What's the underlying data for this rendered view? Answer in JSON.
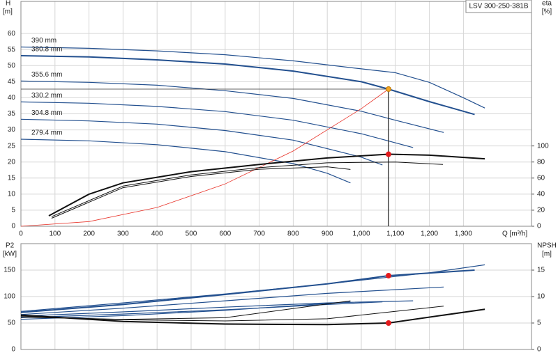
{
  "chart_data": [
    {
      "type": "line",
      "annotation": "LSV 300-250-381B",
      "xlabel": "Q [m³/h]",
      "ylabel": "H",
      "yunit": "[m]",
      "y2label": "eta",
      "y2unit": "[%]",
      "xlim": [
        0,
        1500
      ],
      "ylim": [
        0,
        70
      ],
      "y2lim": [
        0,
        280
      ],
      "grid": true,
      "show_xtick_labels": true,
      "xticks": [
        0,
        100,
        200,
        300,
        400,
        500,
        600,
        700,
        800,
        900,
        {
          "value": 1000,
          "label": "1,000"
        },
        {
          "value": 1100,
          "label": "1,100"
        },
        {
          "value": 1200,
          "label": "1,200"
        },
        {
          "value": 1300,
          "label": "1,300"
        }
      ],
      "yticks": [
        0,
        5,
        10,
        15,
        20,
        25,
        30,
        35,
        40,
        45,
        50,
        55,
        60
      ],
      "y2ticks": [
        0,
        20,
        40,
        60,
        80,
        100
      ],
      "series": [
        {
          "name": "390 mm",
          "color": "#23508f",
          "width": 1.2,
          "x": [
            0,
            200,
            400,
            600,
            800,
            1000,
            1100,
            1200,
            1300,
            1363
          ],
          "values": [
            55.8,
            55.4,
            54.6,
            53.4,
            51.5,
            49,
            47.8,
            44.8,
            40,
            36.8
          ]
        },
        {
          "name": "380.8 mm",
          "color": "#23508f",
          "width": 2,
          "x": [
            0,
            200,
            400,
            600,
            800,
            1000,
            1080,
            1200,
            1333
          ],
          "values": [
            53.1,
            52.7,
            51.8,
            50.5,
            48.3,
            45,
            42.7,
            38.8,
            34.8
          ]
        },
        {
          "name": "355.6 mm",
          "color": "#23508f",
          "width": 1.2,
          "x": [
            0,
            200,
            400,
            600,
            800,
            1000,
            1100,
            1242
          ],
          "values": [
            45.2,
            44.8,
            43.9,
            42.2,
            39.8,
            35.8,
            33,
            29.2
          ]
        },
        {
          "name": "330.2 mm",
          "color": "#23508f",
          "width": 1.2,
          "x": [
            0,
            200,
            400,
            600,
            800,
            1000,
            1152
          ],
          "values": [
            38.7,
            38.3,
            37.3,
            35.7,
            33,
            28.8,
            24.5
          ]
        },
        {
          "name": "304.8 mm",
          "color": "#23508f",
          "width": 1.2,
          "x": [
            0,
            200,
            400,
            600,
            800,
            1000,
            1062
          ],
          "values": [
            33.3,
            32.8,
            31.8,
            29.8,
            26.8,
            21.5,
            19.1
          ]
        },
        {
          "name": "279.4 mm",
          "color": "#23508f",
          "width": 1.2,
          "x": [
            0,
            200,
            400,
            600,
            800,
            900,
            968
          ],
          "values": [
            27.1,
            26.6,
            25.4,
            23.2,
            19.5,
            16.5,
            13.5
          ]
        },
        {
          "color": "#e8352b",
          "width": 0.8,
          "x": [
            0,
            200,
            400,
            600,
            800,
            1000,
            1080
          ],
          "values": [
            0,
            1.46,
            5.86,
            13.18,
            23.43,
            36.61,
            42.7
          ]
        },
        {
          "color": "#111111",
          "width": 2,
          "axis": "y2",
          "x": [
            82,
            200,
            300,
            500,
            700,
            900,
            1080,
            1200,
            1363
          ],
          "values": [
            13,
            40,
            54,
            68,
            77,
            85,
            89.7,
            88.5,
            84
          ]
        },
        {
          "color": "#111111",
          "width": 1,
          "axis": "y2",
          "x": [
            90,
            300,
            500,
            700,
            900,
            1100,
            1240
          ],
          "values": [
            12,
            50,
            64,
            73,
            79,
            80,
            77
          ]
        },
        {
          "color": "#111111",
          "width": 1,
          "axis": "y2",
          "x": [
            90,
            300,
            500,
            700,
            900,
            968
          ],
          "values": [
            10,
            48,
            62,
            71,
            74,
            70.7
          ]
        }
      ],
      "markers": [
        {
          "x": 1080,
          "y": 42.7,
          "color": "#f5a623",
          "guide": true
        },
        {
          "x": 1080,
          "y": 89.7,
          "axis": "y2",
          "color": "#e31a1c"
        }
      ]
    },
    {
      "type": "line",
      "ylabel": "P2",
      "yunit": "[kW]",
      "y2label": "NPSH",
      "y2unit": "[m]",
      "xlim": [
        0,
        1500
      ],
      "ylim": [
        0,
        200
      ],
      "y2lim": [
        0,
        20
      ],
      "grid": true,
      "show_xtick_labels": false,
      "xticks": [
        0,
        100,
        200,
        300,
        400,
        500,
        600,
        700,
        800,
        900,
        1000,
        1100,
        1200,
        1300
      ],
      "yticks": [
        0,
        50,
        100,
        150
      ],
      "y2ticks": [
        0,
        5,
        10,
        15
      ],
      "series": [
        {
          "color": "#23508f",
          "width": 1.2,
          "x": [
            0,
            300,
            600,
            900,
            1200,
            1363
          ],
          "values": [
            72,
            88,
            105,
            124,
            145,
            160
          ]
        },
        {
          "color": "#23508f",
          "width": 2,
          "x": [
            0,
            300,
            600,
            900,
            1080,
            1333
          ],
          "values": [
            70,
            85,
            104,
            124,
            139.5,
            150
          ]
        },
        {
          "color": "#23508f",
          "width": 1.2,
          "x": [
            0,
            300,
            600,
            900,
            1242
          ],
          "values": [
            66,
            78,
            92,
            106,
            118
          ]
        },
        {
          "color": "#23508f",
          "width": 1.2,
          "x": [
            0,
            300,
            600,
            900,
            1152
          ],
          "values": [
            63,
            71,
            80,
            88,
            92
          ]
        },
        {
          "color": "#23508f",
          "width": 1.2,
          "x": [
            0,
            300,
            600,
            900,
            1062
          ],
          "values": [
            60,
            67,
            75,
            85,
            90
          ]
        },
        {
          "color": "#23508f",
          "width": 1.2,
          "x": [
            0,
            300,
            600,
            968
          ],
          "values": [
            57,
            64,
            74,
            90
          ]
        },
        {
          "color": "#111111",
          "width": 2,
          "axis": "y2",
          "x": [
            0,
            300,
            600,
            900,
            1080,
            1363
          ],
          "values": [
            6.5,
            5.3,
            4.8,
            4.7,
            5.0,
            7.6
          ]
        },
        {
          "color": "#111111",
          "width": 1,
          "axis": "y2",
          "x": [
            0,
            300,
            600,
            900,
            1242
          ],
          "values": [
            6.3,
            5.6,
            5.4,
            5.8,
            8.2
          ]
        },
        {
          "color": "#111111",
          "width": 1,
          "axis": "y2",
          "x": [
            0,
            300,
            600,
            968
          ],
          "values": [
            6.1,
            5.7,
            6,
            9.2
          ]
        }
      ],
      "markers": [
        {
          "x": 1080,
          "y": 139.5,
          "color": "#e31a1c"
        },
        {
          "x": 1080,
          "y": 5.0,
          "axis": "y2",
          "color": "#e31a1c"
        }
      ]
    }
  ]
}
